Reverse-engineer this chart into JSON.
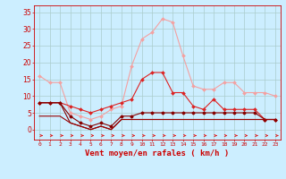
{
  "x": [
    0,
    1,
    2,
    3,
    4,
    5,
    6,
    7,
    8,
    9,
    10,
    11,
    12,
    13,
    14,
    15,
    16,
    17,
    18,
    19,
    20,
    21,
    22,
    23
  ],
  "line_light_full": [
    16,
    14,
    14,
    5,
    4,
    3,
    4,
    6,
    7,
    19,
    27,
    29,
    33,
    32,
    22,
    13,
    12,
    12,
    14,
    14,
    11,
    11,
    11,
    10
  ],
  "line_medium_full": [
    8,
    8,
    8,
    7,
    6,
    5,
    6,
    7,
    8,
    9,
    15,
    17,
    17,
    11,
    11,
    7,
    6,
    9,
    6,
    6,
    6,
    6,
    3,
    3
  ],
  "line_dark1": [
    8,
    8,
    8,
    4,
    2,
    1,
    2,
    1,
    4,
    4,
    5,
    5,
    5,
    5,
    5,
    5,
    5,
    5,
    5,
    5,
    5,
    5,
    3,
    3
  ],
  "line_dark2": [
    8,
    8,
    8,
    2,
    1,
    0,
    1,
    0,
    3,
    3,
    3,
    3,
    3,
    3,
    3,
    3,
    3,
    3,
    3,
    3,
    3,
    3,
    3,
    3
  ],
  "line_dark3": [
    4,
    4,
    4,
    2,
    1,
    0,
    1,
    0,
    3,
    3,
    3,
    3,
    3,
    3,
    3,
    3,
    3,
    3,
    3,
    3,
    3,
    3,
    3,
    3
  ],
  "xlabel": "Vent moyen/en rafales ( km/h )",
  "ylim": [
    -3,
    37
  ],
  "xlim": [
    -0.5,
    23.5
  ],
  "yticks": [
    0,
    5,
    10,
    15,
    20,
    25,
    30,
    35
  ],
  "bg_color": "#cceeff",
  "grid_color": "#aacccc",
  "line_color_light": "#f4a0a0",
  "line_color_medium": "#dd2222",
  "line_color_dark": "#880000",
  "line_color_dark2": "#990000",
  "tick_label_color": "#cc0000",
  "xlabel_color": "#cc0000"
}
